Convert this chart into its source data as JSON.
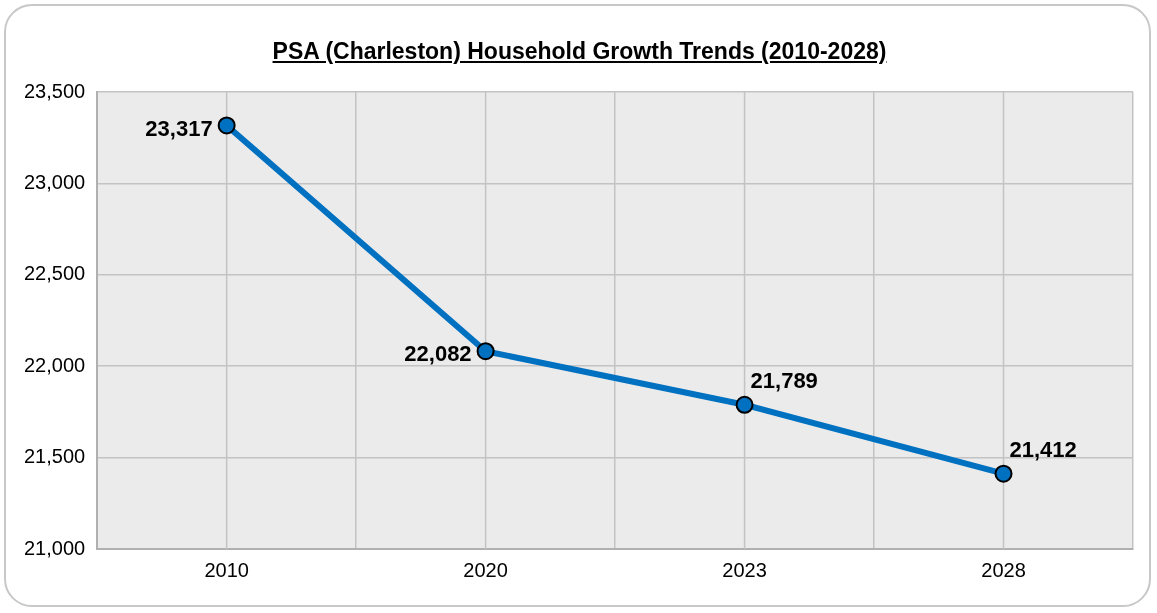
{
  "chart_data": {
    "type": "line",
    "title": "PSA (Charleston) Household Growth Trends (2010-2028)",
    "categories": [
      "2010",
      "2020",
      "2023",
      "2028"
    ],
    "values": [
      23317,
      22082,
      21789,
      21412
    ],
    "value_labels": [
      "23,317",
      "22,082",
      "21,789",
      "21,412"
    ],
    "color": "#0070c0",
    "marker": "circle",
    "ylim": [
      21000,
      23500
    ],
    "yticks": [
      {
        "value": 21000,
        "label": "21,000"
      },
      {
        "value": 21500,
        "label": "21,500"
      },
      {
        "value": 22000,
        "label": "22,000"
      },
      {
        "value": 22500,
        "label": "22,500"
      },
      {
        "value": 23000,
        "label": "23,000"
      },
      {
        "value": 23500,
        "label": "23,500"
      }
    ],
    "grid": true
  }
}
